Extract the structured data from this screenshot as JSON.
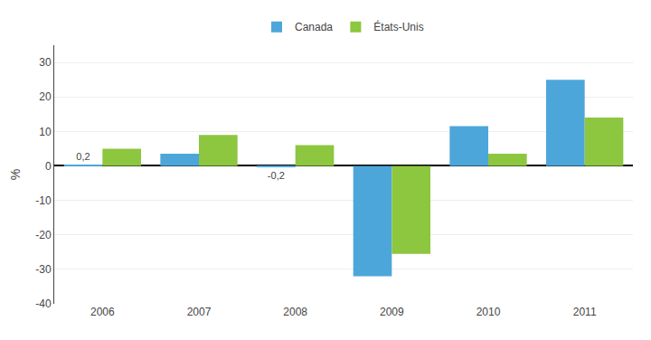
{
  "chart_data": {
    "type": "bar",
    "y_label": "%",
    "categories": [
      "2006",
      "2007",
      "2008",
      "2009",
      "2010",
      "2011"
    ],
    "series": [
      {
        "name": "Canada",
        "color": "#4da6d9",
        "values": [
          0.2,
          3.5,
          -0.2,
          -32.0,
          11.5,
          25.0
        ]
      },
      {
        "name": "États-Unis",
        "color": "#8dc63f",
        "values": [
          5.0,
          9.0,
          6.0,
          -25.5,
          3.5,
          14.0
        ]
      }
    ],
    "annotations": [
      {
        "text": "0,2",
        "x": "2006",
        "series": "Canada"
      },
      {
        "text": "-0,2",
        "x": "2008",
        "series": "Canada"
      }
    ],
    "ylim": [
      -40,
      35
    ],
    "yticks": [
      -40,
      -30,
      -20,
      -10,
      0,
      10,
      20,
      30
    ],
    "grid": true,
    "legend": "top"
  }
}
